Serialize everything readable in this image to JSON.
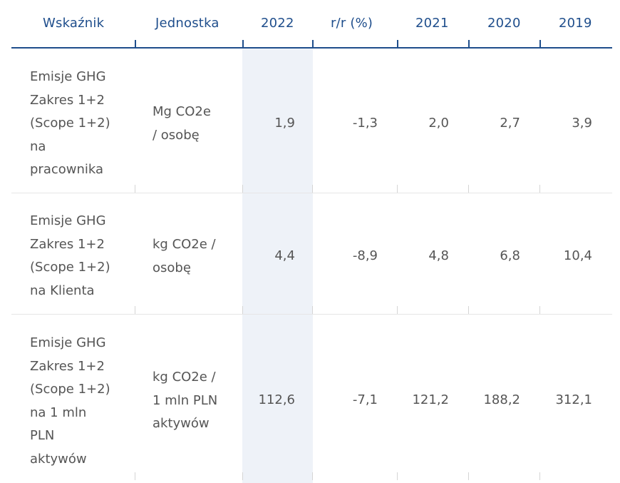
{
  "headers": [
    "Wskaźnik",
    "Jednostka",
    "2022",
    "r/r (%)",
    "2021",
    "2020",
    "2019"
  ],
  "rows": [
    {
      "indicator": [
        "Emisje GHG",
        "Zakres 1+2",
        "(Scope 1+2)",
        "na",
        "pracownika"
      ],
      "unit": [
        "Mg CO2e",
        "/ osobę"
      ],
      "values": [
        "1,9",
        "-1,3",
        "2,0",
        "2,7",
        "3,9"
      ]
    },
    {
      "indicator": [
        "Emisje GHG",
        "Zakres 1+2",
        "(Scope 1+2)",
        "na Klienta"
      ],
      "unit": [
        "kg CO2e /",
        "osobę"
      ],
      "values": [
        "4,4",
        "-8,9",
        "4,8",
        "6,8",
        "10,4"
      ]
    },
    {
      "indicator": [
        "Emisje GHG",
        "Zakres 1+2",
        "(Scope 1+2)",
        "na 1 mln",
        "PLN",
        "aktywów"
      ],
      "unit": [
        "kg CO2e /",
        "1 mln PLN",
        "aktywów"
      ],
      "values": [
        "112,6",
        "-7,1",
        "121,2",
        "188,2",
        "312,1"
      ]
    }
  ],
  "colors": {
    "header_text": "#1f4e8c",
    "highlight_column": "#eef2f8",
    "body_text": "#555555"
  }
}
